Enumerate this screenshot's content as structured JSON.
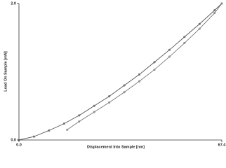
{
  "chart_data": {
    "type": "line",
    "xlabel": "Displacement Into Sample [nm]",
    "ylabel": "Load On Sample [mN]",
    "xlim": [
      0,
      67.4
    ],
    "ylim": [
      0,
      2
    ],
    "xticks": [
      {
        "value": 0,
        "label": "0.0"
      },
      67.4
    ],
    "yticks": [
      {
        "value": 0,
        "label": "0.0"
      },
      {
        "value": 2,
        "label": "2.0"
      }
    ],
    "markers": true,
    "series": [
      {
        "color": "#555555",
        "x": [
          0,
          5,
          10,
          15,
          20,
          25,
          30,
          35,
          40,
          45,
          50,
          55,
          60,
          65,
          67.4
        ],
        "values": [
          0,
          0.05,
          0.14,
          0.24,
          0.36,
          0.5,
          0.64,
          0.8,
          0.96,
          1.14,
          1.32,
          1.51,
          1.7,
          1.9,
          2.0
        ]
      },
      {
        "color": "#777777",
        "x": [
          67.4,
          65,
          60,
          55,
          50,
          45,
          40,
          35,
          30,
          25,
          20,
          16
        ],
        "values": [
          2.0,
          1.86,
          1.63,
          1.42,
          1.22,
          1.03,
          0.86,
          0.7,
          0.55,
          0.41,
          0.27,
          0.15
        ]
      }
    ]
  }
}
